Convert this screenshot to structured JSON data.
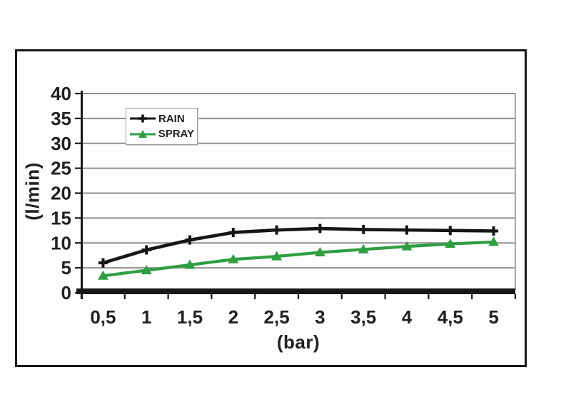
{
  "colors": {
    "background": "#fdfdfd",
    "frame_border": "#161616",
    "gridline": "#8f8f8f",
    "axis": "#161616",
    "tick_text": "#212121",
    "plot_right_border": "#a6a6a6",
    "legend_border": "#9b9b9b",
    "rain": "#161616",
    "spray": "#2f9e41"
  },
  "chart_data": {
    "type": "line",
    "title": "",
    "xlabel": "(bar)",
    "ylabel": "(l/min)",
    "x": [
      0.5,
      1,
      1.5,
      2,
      2.5,
      3,
      3.5,
      4,
      4.5,
      5
    ],
    "x_tick_labels": [
      "0,5",
      "1",
      "1,5",
      "2",
      "2,5",
      "3",
      "3,5",
      "4",
      "4,5",
      "5"
    ],
    "ylim": [
      0,
      40
    ],
    "y_ticks": [
      0,
      5,
      10,
      15,
      20,
      25,
      30,
      35,
      40
    ],
    "grid": true,
    "legend_position": "top-left-inside",
    "series": [
      {
        "name": "RAIN",
        "color": "#161616",
        "marker": "plus",
        "values": [
          6.0,
          8.6,
          10.6,
          12.1,
          12.6,
          12.9,
          12.7,
          12.6,
          12.5,
          12.4
        ]
      },
      {
        "name": "SPRAY",
        "color": "#2f9e41",
        "marker": "triangle",
        "values": [
          3.4,
          4.5,
          5.6,
          6.7,
          7.3,
          8.1,
          8.7,
          9.3,
          9.8,
          10.2
        ]
      }
    ]
  }
}
